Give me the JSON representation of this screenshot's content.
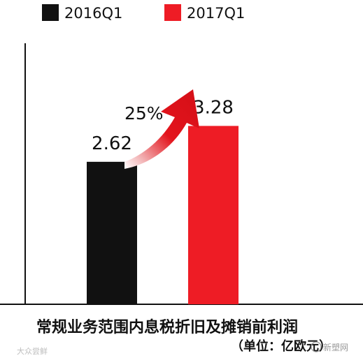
{
  "chart_data": {
    "type": "bar",
    "categories": [
      "2016Q1",
      "2017Q1"
    ],
    "series": [
      {
        "name": "2016Q1",
        "values": [
          2.62,
          null
        ],
        "color": "#111111"
      },
      {
        "name": "2017Q1",
        "values": [
          null,
          3.28
        ],
        "color": "#ee1c25"
      }
    ],
    "values": [
      2.62,
      3.28
    ],
    "data_labels": [
      "2.62",
      "3.28"
    ],
    "growth_annotation": "25%",
    "xlabel": "常规业务范围内息税折旧及摊销前利润",
    "unit_note": "（单位：亿欧元）",
    "ylim": [
      0,
      4.8
    ],
    "grid": false,
    "legend": "top-left"
  },
  "watermarks": {
    "left": "大众尝鲜",
    "right": "新塑网"
  },
  "colors": {
    "arrow": "#e3141c",
    "axis": "#111111"
  }
}
